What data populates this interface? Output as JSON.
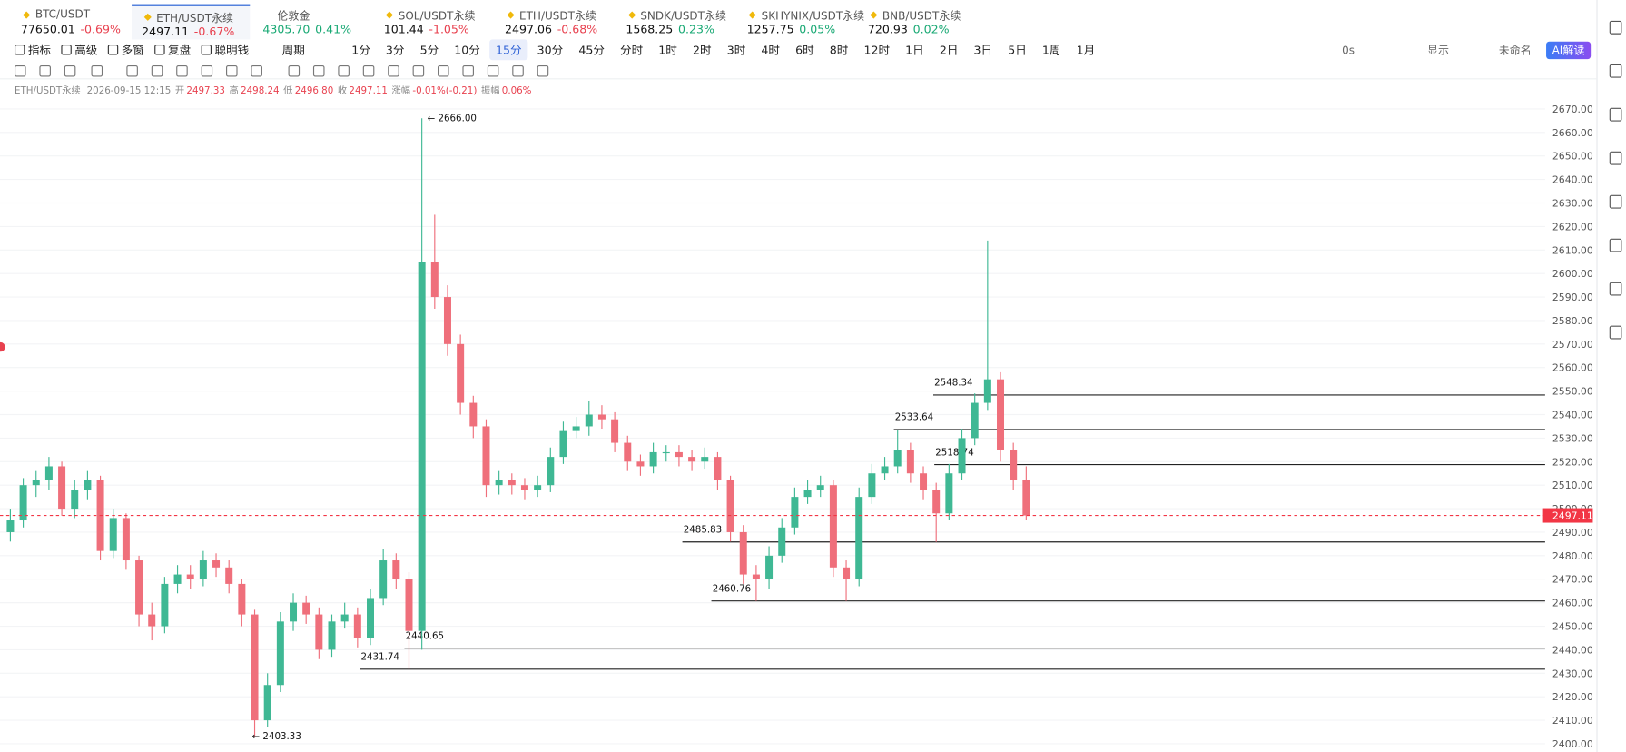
{
  "tabs": [
    {
      "symbol": "BTC/USDT",
      "price": "77650.01",
      "change": "-0.69%"
    },
    {
      "symbol": "ETH/USDT永续",
      "price": "2497.11",
      "change": "-0.67%"
    },
    {
      "symbol": "伦敦金",
      "price": "4305.70",
      "change": "0.41%"
    },
    {
      "symbol": "SOL/USDT永续",
      "price": "101.44",
      "change": "-1.05%"
    },
    {
      "symbol": "ETH/USDT永续",
      "price": "2497.06",
      "change": "-0.68%"
    },
    {
      "symbol": "SNDK/USDT永续",
      "price": "1568.25",
      "change": "0.23%"
    },
    {
      "symbol": "SKHYNIX/USDT永续",
      "price": "1257.75",
      "change": "0.05%"
    },
    {
      "symbol": "BNB/USDT永续",
      "price": "720.93",
      "change": "0.02%"
    }
  ],
  "active_tab": 1,
  "toolbar": {
    "items": [
      "指标",
      "高级",
      "多窗",
      "复盘",
      "聪明钱"
    ],
    "period": "周期",
    "intervals": [
      "1分",
      "3分",
      "5分",
      "10分",
      "15分",
      "30分",
      "45分",
      "分时",
      "1时",
      "2时",
      "3时",
      "4时",
      "6时",
      "8时",
      "12时",
      "1日",
      "2日",
      "3日",
      "5日",
      "1周",
      "1月"
    ],
    "active_interval": 4,
    "timer": "0s",
    "display": "显示",
    "layout": "未命名",
    "ai": "AI解读"
  },
  "info": {
    "symbol": "ETH/USDT永续",
    "time": "2026-09-15 12:15",
    "fields": [
      {
        "name": "开",
        "value": "2497.33"
      },
      {
        "name": "高",
        "value": "2498.24"
      },
      {
        "name": "低",
        "value": "2496.80"
      },
      {
        "name": "收",
        "value": "2497.11"
      },
      {
        "name": "涨幅",
        "value": "-0.01%(-0.21)"
      },
      {
        "name": "振幅",
        "value": "0.06%"
      }
    ]
  },
  "chart_data": {
    "type": "candlestick",
    "up_color": "#3fb894",
    "down_color": "#ef6f7b",
    "grid": true,
    "ylim": [
      2400,
      2670
    ],
    "yticks": [
      {
        "value": 2400,
        "label": "2400.00"
      },
      {
        "value": 2410,
        "label": "2410.00"
      },
      {
        "value": 2420,
        "label": "2420.00"
      },
      {
        "value": 2430,
        "label": "2430.00"
      },
      {
        "value": 2440,
        "label": "2440.00"
      },
      {
        "value": 2450,
        "label": "2450.00"
      },
      {
        "value": 2460,
        "label": "2460.00"
      },
      {
        "value": 2470,
        "label": "2470.00"
      },
      {
        "value": 2480,
        "label": "2480.00"
      },
      {
        "value": 2490,
        "label": "2490.00"
      },
      {
        "value": 2500,
        "label": "2500.00"
      },
      {
        "value": 2510,
        "label": "2510.00"
      },
      {
        "value": 2520,
        "label": "2520.00"
      },
      {
        "value": 2530,
        "label": "2530.00"
      },
      {
        "value": 2540,
        "label": "2540.00"
      },
      {
        "value": 2550,
        "label": "2550.00"
      },
      {
        "value": 2560,
        "label": "2560.00"
      },
      {
        "value": 2570,
        "label": "2570.00"
      },
      {
        "value": 2580,
        "label": "2580.00"
      },
      {
        "value": 2590,
        "label": "2590.00"
      },
      {
        "value": 2600,
        "label": "2600.00"
      },
      {
        "value": 2610,
        "label": "2610.00"
      },
      {
        "value": 2620,
        "label": "2620.00"
      },
      {
        "value": 2630,
        "label": "2630.00"
      },
      {
        "value": 2640,
        "label": "2640.00"
      },
      {
        "value": 2650,
        "label": "2650.00"
      },
      {
        "value": 2660,
        "label": "2660.00"
      },
      {
        "value": 2670,
        "label": "2670.00"
      }
    ],
    "ohlc": [
      [
        2490,
        2500,
        2486,
        2495
      ],
      [
        2495,
        2513,
        2492,
        2510
      ],
      [
        2510,
        2516,
        2505,
        2512
      ],
      [
        2512,
        2522,
        2508,
        2518
      ],
      [
        2518,
        2520,
        2497,
        2500
      ],
      [
        2500,
        2512,
        2496,
        2508
      ],
      [
        2508,
        2516,
        2504,
        2512
      ],
      [
        2512,
        2514,
        2478,
        2482
      ],
      [
        2482,
        2500,
        2479,
        2496
      ],
      [
        2496,
        2498,
        2474,
        2478
      ],
      [
        2478,
        2480,
        2450,
        2455
      ],
      [
        2455,
        2460,
        2444,
        2450
      ],
      [
        2450,
        2471,
        2447,
        2468
      ],
      [
        2468,
        2476,
        2464,
        2472
      ],
      [
        2472,
        2476,
        2466,
        2470
      ],
      [
        2470,
        2482,
        2467,
        2478
      ],
      [
        2478,
        2481,
        2471,
        2475
      ],
      [
        2475,
        2478,
        2464,
        2468
      ],
      [
        2468,
        2470,
        2450,
        2455
      ],
      [
        2455,
        2457,
        2403.33,
        2410
      ],
      [
        2410,
        2430,
        2407,
        2425
      ],
      [
        2425,
        2456,
        2422,
        2452
      ],
      [
        2452,
        2464,
        2448,
        2460
      ],
      [
        2460,
        2463,
        2451,
        2455
      ],
      [
        2455,
        2458,
        2436,
        2440
      ],
      [
        2440,
        2455,
        2437,
        2452
      ],
      [
        2452,
        2460,
        2449,
        2455
      ],
      [
        2455,
        2458,
        2441,
        2445
      ],
      [
        2445,
        2466,
        2442,
        2462
      ],
      [
        2462,
        2483,
        2459,
        2478
      ],
      [
        2478,
        2481,
        2466,
        2470
      ],
      [
        2470,
        2473,
        2431.74,
        2448
      ],
      [
        2448,
        2666,
        2440,
        2605
      ],
      [
        2605,
        2625,
        2585,
        2590
      ],
      [
        2590,
        2595,
        2565,
        2570
      ],
      [
        2570,
        2574,
        2540,
        2545
      ],
      [
        2545,
        2548,
        2530,
        2535
      ],
      [
        2535,
        2538,
        2505,
        2510
      ],
      [
        2510,
        2516,
        2506,
        2512
      ],
      [
        2512,
        2515,
        2506,
        2510
      ],
      [
        2510,
        2513,
        2504,
        2508
      ],
      [
        2508,
        2514,
        2505,
        2510
      ],
      [
        2510,
        2526,
        2507,
        2522
      ],
      [
        2522,
        2537,
        2519,
        2533
      ],
      [
        2533,
        2539,
        2530,
        2535
      ],
      [
        2535,
        2546,
        2531,
        2540
      ],
      [
        2540,
        2544,
        2534,
        2538
      ],
      [
        2538,
        2541,
        2524,
        2528
      ],
      [
        2528,
        2531,
        2516,
        2520
      ],
      [
        2520,
        2523,
        2514,
        2518
      ],
      [
        2518,
        2528,
        2515,
        2524
      ],
      [
        2524,
        2527,
        2520,
        2524
      ],
      [
        2524,
        2527,
        2518,
        2522
      ],
      [
        2522,
        2525,
        2516,
        2520
      ],
      [
        2520,
        2526,
        2517,
        2522
      ],
      [
        2522,
        2524,
        2508,
        2512
      ],
      [
        2512,
        2514,
        2486,
        2490
      ],
      [
        2490,
        2493,
        2468,
        2472
      ],
      [
        2472,
        2476,
        2460.76,
        2470
      ],
      [
        2470,
        2484,
        2466,
        2480
      ],
      [
        2480,
        2496,
        2477,
        2492
      ],
      [
        2492,
        2509,
        2489,
        2505
      ],
      [
        2505,
        2512,
        2502,
        2508
      ],
      [
        2508,
        2514,
        2505,
        2510
      ],
      [
        2510,
        2512,
        2471,
        2475
      ],
      [
        2475,
        2478,
        2460.76,
        2470
      ],
      [
        2470,
        2509,
        2467,
        2505
      ],
      [
        2505,
        2519,
        2502,
        2515
      ],
      [
        2515,
        2522,
        2512,
        2518
      ],
      [
        2518,
        2533.64,
        2515,
        2525
      ],
      [
        2525,
        2528,
        2511,
        2515
      ],
      [
        2515,
        2518,
        2504,
        2508
      ],
      [
        2508,
        2511,
        2485.83,
        2498
      ],
      [
        2498,
        2519,
        2495,
        2515
      ],
      [
        2515,
        2534,
        2512,
        2530
      ],
      [
        2530,
        2549,
        2527,
        2545
      ],
      [
        2545,
        2614,
        2542,
        2555
      ],
      [
        2555,
        2558,
        2520,
        2525
      ],
      [
        2525,
        2528,
        2508,
        2512
      ],
      [
        2512,
        2518,
        2495,
        2497.11
      ]
    ],
    "levels": [
      2548.34,
      2533.64,
      2518.74,
      2485.83,
      2460.76,
      2440.65,
      2431.74
    ],
    "annotations": [
      {
        "value": 2666,
        "label": "← 2666.00"
      },
      {
        "value": 2403.33,
        "label": "← 2403.33"
      }
    ],
    "last_price": 2497.11,
    "last_color": "#f23645"
  }
}
